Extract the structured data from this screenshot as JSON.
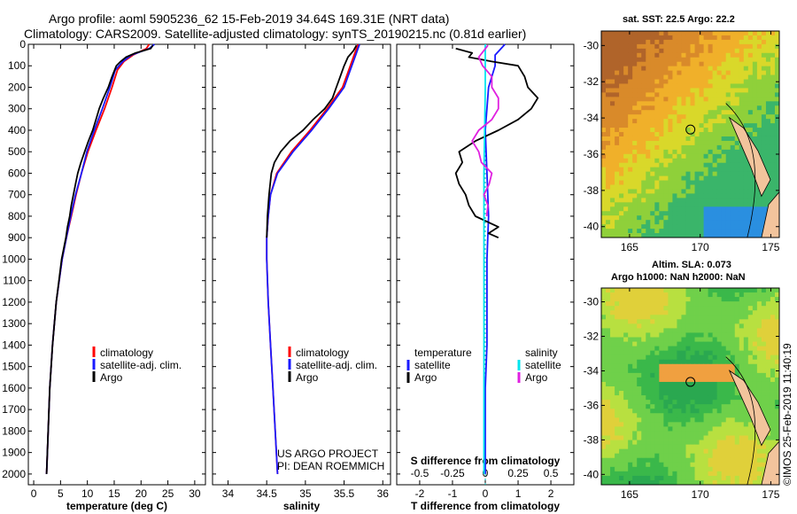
{
  "header": {
    "title_line1": "Argo profile: aoml 5905236_62 15-Feb-2019 34.64S 169.31E (NRT data)",
    "title_line2": "Climatology: CARS2009. Satellite-adjusted climatology: synTS_20190215.nc (0.81d earlier)"
  },
  "colors": {
    "climatology": "#ff0000",
    "satellite_adj": "#1a1aff",
    "argo": "#000000",
    "temperature_satellite": "#1a1aff",
    "temperature_argo": "#000000",
    "salinity_satellite": "#00e5ee",
    "salinity_argo": "#e020e0"
  },
  "legend": {
    "climatology": "climatology",
    "satellite": "satellite-adj. clim.",
    "argo": "Argo",
    "diff_temperature_title": "temperature",
    "diff_salinity_title": "salinity",
    "diff_satellite": "satellite",
    "diff_argo": "Argo"
  },
  "credits": {
    "line1": "US ARGO PROJECT",
    "line2": "PI: DEAN ROEMMICH"
  },
  "maps": {
    "sst_title": "sat. SST: 22.5 Argo: 22.2",
    "sla_title1": "Altim. SLA: 0.073",
    "sla_title2": "Argo h1000: NaN h2000: NaN",
    "watermark": "©IMOS 25-Feb-2019 11:40:19",
    "lat_ticks": [
      "-30",
      "-32",
      "-34",
      "-36",
      "-38",
      "-40"
    ],
    "lon_ticks": [
      "165",
      "170",
      "175"
    ],
    "marker_lat": -34.64,
    "marker_lon": 169.31
  },
  "chart_data": [
    {
      "type": "line",
      "name": "temperature",
      "xlabel": "temperature (deg C)",
      "ylabel": "",
      "xlim": [
        -1,
        32
      ],
      "ylim": [
        2050,
        0
      ],
      "xticks": [
        0,
        5,
        10,
        15,
        20,
        25,
        30
      ],
      "xtick_labels": [
        "0",
        "5",
        "10",
        "15",
        "20",
        "25",
        "30"
      ],
      "yticks": [
        0,
        100,
        200,
        300,
        400,
        500,
        600,
        700,
        800,
        900,
        1000,
        1100,
        1200,
        1300,
        1400,
        1500,
        1600,
        1700,
        1800,
        1900,
        2000
      ],
      "ytick_labels": [
        "0",
        "100",
        "200",
        "300",
        "400",
        "500",
        "600",
        "700",
        "800",
        "900",
        "1000",
        "1100",
        "1200",
        "1300",
        "1400",
        "1500",
        "1600",
        "1700",
        "1800",
        "1900",
        "2000"
      ],
      "series": [
        {
          "name": "climatology",
          "depth": [
            0,
            20,
            50,
            80,
            120,
            200,
            300,
            400,
            500,
            600,
            700,
            800,
            900,
            1000,
            1200,
            1400,
            1600,
            1800,
            2000
          ],
          "values": [
            21.5,
            21.0,
            18.5,
            16.8,
            15.6,
            14.6,
            13.2,
            11.6,
            10.1,
            8.9,
            7.9,
            7.0,
            6.1,
            5.3,
            4.2,
            3.5,
            3.0,
            2.7,
            2.4
          ]
        },
        {
          "name": "satellite-adj. clim.",
          "depth": [
            0,
            20,
            50,
            80,
            120,
            200,
            300,
            400,
            500,
            600,
            700,
            800,
            900,
            1000,
            1200,
            1400,
            1600,
            1800,
            2000
          ],
          "values": [
            22.5,
            21.5,
            18.2,
            16.6,
            15.2,
            14.2,
            12.8,
            11.3,
            9.9,
            8.9,
            7.8,
            6.9,
            6.1,
            5.3,
            4.2,
            3.5,
            3.0,
            2.7,
            2.4
          ]
        },
        {
          "name": "Argo",
          "depth": [
            5,
            20,
            40,
            60,
            80,
            100,
            150,
            200,
            250,
            300,
            350,
            400,
            450,
            500,
            550,
            600,
            650,
            700,
            750,
            800,
            850,
            900,
            1000,
            1200,
            1400,
            1600,
            1800,
            2000
          ],
          "values": [
            22.2,
            21.8,
            19.0,
            17.2,
            16.2,
            15.4,
            14.6,
            13.9,
            13.0,
            12.2,
            11.6,
            11.0,
            10.2,
            9.5,
            8.8,
            8.2,
            7.8,
            7.4,
            7.0,
            6.7,
            6.3,
            6.0,
            5.2,
            4.2,
            3.5,
            3.0,
            2.7,
            2.4
          ]
        }
      ]
    },
    {
      "type": "line",
      "name": "salinity",
      "xlabel": "salinity",
      "ylabel": "",
      "xlim": [
        33.8,
        36.1
      ],
      "ylim": [
        2050,
        0
      ],
      "xticks": [
        34,
        34.5,
        35,
        35.5,
        36
      ],
      "xtick_labels": [
        "34",
        "34.5",
        "35",
        "35.5",
        "36"
      ],
      "series": [
        {
          "name": "climatology",
          "depth": [
            0,
            50,
            100,
            200,
            300,
            400,
            500,
            600,
            700,
            800,
            900,
            1000,
            1200,
            1400,
            1600,
            1800,
            2000
          ],
          "values": [
            35.68,
            35.63,
            35.58,
            35.48,
            35.28,
            35.06,
            34.82,
            34.63,
            34.55,
            34.52,
            34.5,
            34.5,
            34.52,
            34.55,
            34.58,
            34.61,
            34.64
          ]
        },
        {
          "name": "satellite-adj. clim.",
          "depth": [
            0,
            50,
            100,
            200,
            300,
            400,
            500,
            600,
            700,
            800,
            900,
            1000,
            1200,
            1400,
            1600,
            1800,
            2000
          ],
          "values": [
            35.7,
            35.65,
            35.6,
            35.5,
            35.3,
            35.08,
            34.84,
            34.64,
            34.55,
            34.52,
            34.5,
            34.5,
            34.52,
            34.55,
            34.58,
            34.61,
            34.64
          ]
        },
        {
          "name": "Argo",
          "depth": [
            5,
            30,
            60,
            100,
            150,
            200,
            250,
            300,
            350,
            400,
            450,
            500,
            550,
            600,
            700,
            800,
            900
          ],
          "values": [
            35.66,
            35.62,
            35.55,
            35.5,
            35.45,
            35.4,
            35.35,
            35.25,
            35.1,
            34.97,
            34.8,
            34.68,
            34.6,
            34.56,
            34.53,
            34.51,
            34.5
          ]
        }
      ]
    },
    {
      "type": "line",
      "name": "difference",
      "xlabel": "T difference from climatology",
      "x2label": "S difference from climatology",
      "xlim": [
        -2.7,
        2.7
      ],
      "x2lim": [
        -0.675,
        0.675
      ],
      "ylim": [
        2050,
        0
      ],
      "xticks": [
        -2,
        -1,
        0,
        1,
        2
      ],
      "xtick_labels": [
        "-2",
        "-1",
        "0",
        "1",
        "2"
      ],
      "x2ticks": [
        -0.5,
        -0.25,
        0,
        0.25,
        0.5
      ],
      "x2tick_labels": [
        "-0.5",
        "-0.25",
        "0",
        "0.25",
        "0.5"
      ],
      "series": [
        {
          "name": "temperature satellite",
          "depth": [
            0,
            50,
            100,
            200,
            400,
            600,
            800,
            1000,
            1200,
            1400,
            1600,
            1800,
            2000
          ],
          "values": [
            0.6,
            0.3,
            0.3,
            0.1,
            0.0,
            0.05,
            0.1,
            0.05,
            0.05,
            0.05,
            0.0,
            0.0,
            0.0
          ]
        },
        {
          "name": "temperature Argo",
          "depth": [
            20,
            40,
            60,
            80,
            100,
            150,
            200,
            250,
            300,
            350,
            400,
            450,
            500,
            550,
            600,
            650,
            700,
            750,
            800,
            850,
            880,
            900
          ],
          "values": [
            -0.9,
            -0.4,
            -0.5,
            0.2,
            1.0,
            1.2,
            1.3,
            1.6,
            1.4,
            1.0,
            0.4,
            -0.3,
            -0.8,
            -0.7,
            -0.9,
            -0.8,
            -0.6,
            -0.5,
            -0.3,
            0.4,
            0.1,
            0.4
          ]
        },
        {
          "name": "salinity satellite",
          "depth": [
            0,
            200,
            400,
            600,
            800,
            1000,
            1200,
            1400,
            1600,
            1800,
            2000
          ],
          "values": [
            0.0,
            0.0,
            -0.005,
            -0.01,
            -0.01,
            -0.01,
            -0.01,
            -0.01,
            -0.01,
            -0.01,
            -0.01
          ]
        },
        {
          "name": "salinity Argo",
          "depth": [
            5,
            60,
            100,
            150,
            200,
            250,
            300,
            350,
            400,
            450,
            500,
            550,
            600,
            650,
            700,
            750,
            800
          ],
          "values": [
            0.02,
            -0.05,
            -0.02,
            0.05,
            0.05,
            0.1,
            0.1,
            0.05,
            -0.05,
            -0.1,
            -0.05,
            -0.03,
            0.05,
            0.03,
            -0.01,
            0.02,
            0.01
          ]
        }
      ]
    }
  ]
}
